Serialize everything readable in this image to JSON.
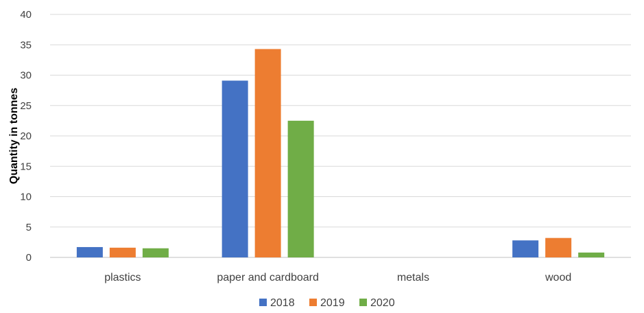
{
  "chart_data": {
    "type": "bar",
    "title": "",
    "xlabel": "",
    "ylabel": "Quantity in tonnes",
    "categories": [
      "plastics",
      "paper and cardboard",
      "metals",
      "wood"
    ],
    "series": [
      {
        "name": "2018",
        "color": "#4472c4",
        "values": [
          1.7,
          29.1,
          0,
          2.8
        ]
      },
      {
        "name": "2019",
        "color": "#ed7d31",
        "values": [
          1.6,
          34.3,
          0,
          3.2
        ]
      },
      {
        "name": "2020",
        "color": "#70ad47",
        "values": [
          1.5,
          22.5,
          0,
          0.8
        ]
      }
    ],
    "ylim": [
      0,
      40
    ],
    "yticks": [
      "0",
      "5",
      "10",
      "15",
      "20",
      "25",
      "30",
      "35",
      "40"
    ],
    "grid": true,
    "legend_position": "bottom"
  }
}
